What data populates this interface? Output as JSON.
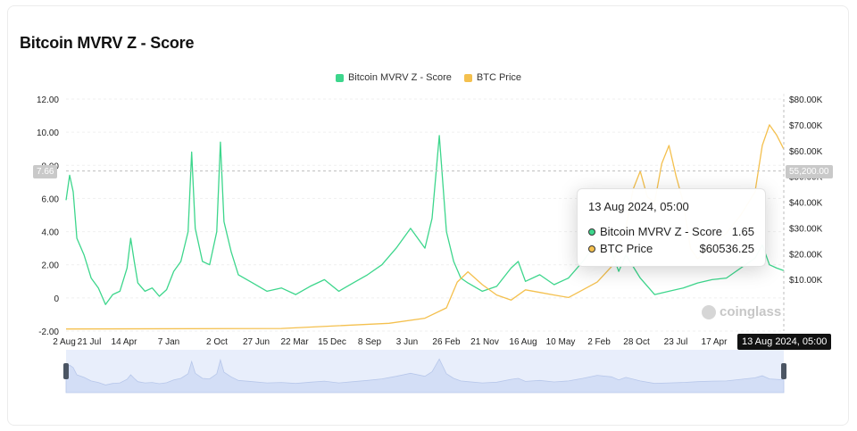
{
  "title": "Bitcoin MVRV Z - Score",
  "legend": [
    {
      "label": "Bitcoin MVRV Z - Score",
      "color": "#3dd68c"
    },
    {
      "label": "BTC Price",
      "color": "#f4c04e"
    }
  ],
  "crosshair": {
    "left_value": "7.66",
    "right_value": "55,200.00",
    "time_label": "13 Aug 2024, 05:00"
  },
  "tooltip": {
    "time": "13 Aug 2024, 05:00",
    "rows": [
      {
        "label": "Bitcoin MVRV Z - Score",
        "value": "1.65",
        "color": "#3dd68c"
      },
      {
        "label": "BTC Price",
        "value": "$60536.25",
        "color": "#f4c04e"
      }
    ]
  },
  "watermark": "coinglass",
  "chart_data": {
    "type": "line",
    "title": "Bitcoin MVRV Z - Score",
    "x_ticks": [
      "2 Aug",
      "21 Jul",
      "14 Apr",
      "7 Jan",
      "2 Oct",
      "27 Jun",
      "22 Mar",
      "15 Dec",
      "8 Sep",
      "3 Jun",
      "26 Feb",
      "21 Nov",
      "16 Aug",
      "10 May",
      "2 Feb",
      "28 Oct",
      "23 Jul",
      "17 Apr",
      "13 Aug 2024, 05:00"
    ],
    "y_left": {
      "ticks": [
        "12.00",
        "10.00",
        "8.00",
        "6.00",
        "4.00",
        "2.00",
        "0",
        "-2.00"
      ],
      "range": [
        -2,
        12
      ]
    },
    "y_right": {
      "ticks": [
        "$80.00K",
        "$70.00K",
        "$60.00K",
        "$50.00K",
        "$40.00K",
        "$30.00K",
        "$20.00K",
        "$10.00K"
      ],
      "range": [
        -10000,
        80000
      ]
    },
    "series": [
      {
        "name": "Bitcoin MVRV Z - Score",
        "color": "#3dd68c",
        "axis": "left",
        "points": [
          [
            0,
            5.9
          ],
          [
            0.005,
            7.4
          ],
          [
            0.01,
            6.4
          ],
          [
            0.015,
            3.6
          ],
          [
            0.025,
            2.6
          ],
          [
            0.035,
            1.2
          ],
          [
            0.045,
            0.6
          ],
          [
            0.055,
            -0.4
          ],
          [
            0.065,
            0.2
          ],
          [
            0.075,
            0.4
          ],
          [
            0.085,
            1.8
          ],
          [
            0.09,
            3.6
          ],
          [
            0.095,
            2.2
          ],
          [
            0.1,
            0.9
          ],
          [
            0.11,
            0.4
          ],
          [
            0.12,
            0.6
          ],
          [
            0.13,
            0.1
          ],
          [
            0.14,
            0.5
          ],
          [
            0.15,
            1.6
          ],
          [
            0.16,
            2.2
          ],
          [
            0.17,
            4.0
          ],
          [
            0.175,
            8.8
          ],
          [
            0.18,
            4.2
          ],
          [
            0.19,
            2.2
          ],
          [
            0.2,
            2.0
          ],
          [
            0.21,
            4.0
          ],
          [
            0.215,
            9.4
          ],
          [
            0.22,
            4.6
          ],
          [
            0.23,
            2.8
          ],
          [
            0.24,
            1.4
          ],
          [
            0.26,
            0.9
          ],
          [
            0.28,
            0.4
          ],
          [
            0.3,
            0.6
          ],
          [
            0.32,
            0.2
          ],
          [
            0.34,
            0.7
          ],
          [
            0.36,
            1.1
          ],
          [
            0.38,
            0.4
          ],
          [
            0.4,
            0.9
          ],
          [
            0.42,
            1.4
          ],
          [
            0.44,
            2.0
          ],
          [
            0.46,
            3.0
          ],
          [
            0.48,
            4.2
          ],
          [
            0.5,
            3.0
          ],
          [
            0.51,
            4.8
          ],
          [
            0.52,
            9.8
          ],
          [
            0.53,
            4.0
          ],
          [
            0.54,
            2.2
          ],
          [
            0.55,
            1.2
          ],
          [
            0.56,
            0.9
          ],
          [
            0.58,
            0.4
          ],
          [
            0.6,
            0.7
          ],
          [
            0.62,
            1.8
          ],
          [
            0.63,
            2.2
          ],
          [
            0.64,
            1.0
          ],
          [
            0.66,
            1.4
          ],
          [
            0.68,
            0.8
          ],
          [
            0.7,
            1.2
          ],
          [
            0.72,
            2.2
          ],
          [
            0.74,
            3.4
          ],
          [
            0.76,
            2.8
          ],
          [
            0.77,
            1.6
          ],
          [
            0.78,
            2.6
          ],
          [
            0.8,
            1.2
          ],
          [
            0.82,
            0.2
          ],
          [
            0.84,
            0.4
          ],
          [
            0.86,
            0.6
          ],
          [
            0.88,
            0.9
          ],
          [
            0.9,
            1.1
          ],
          [
            0.92,
            1.2
          ],
          [
            0.94,
            1.8
          ],
          [
            0.96,
            2.4
          ],
          [
            0.97,
            3.2
          ],
          [
            0.98,
            2.0
          ],
          [
            0.99,
            1.8
          ],
          [
            1.0,
            1.65
          ]
        ]
      },
      {
        "name": "BTC Price",
        "color": "#f4c04e",
        "axis": "right",
        "points": [
          [
            0,
            -9200
          ],
          [
            0.3,
            -9000
          ],
          [
            0.45,
            -7000
          ],
          [
            0.5,
            -5000
          ],
          [
            0.53,
            -1000
          ],
          [
            0.545,
            9000
          ],
          [
            0.56,
            13000
          ],
          [
            0.58,
            8000
          ],
          [
            0.6,
            4000
          ],
          [
            0.62,
            2000
          ],
          [
            0.64,
            6000
          ],
          [
            0.66,
            5000
          ],
          [
            0.68,
            4000
          ],
          [
            0.7,
            3000
          ],
          [
            0.72,
            6000
          ],
          [
            0.74,
            9000
          ],
          [
            0.76,
            15000
          ],
          [
            0.78,
            30000
          ],
          [
            0.79,
            45000
          ],
          [
            0.8,
            52000
          ],
          [
            0.81,
            42000
          ],
          [
            0.82,
            40000
          ],
          [
            0.83,
            55000
          ],
          [
            0.84,
            62000
          ],
          [
            0.85,
            50000
          ],
          [
            0.86,
            40000
          ],
          [
            0.87,
            22000
          ],
          [
            0.88,
            18000
          ],
          [
            0.9,
            23000
          ],
          [
            0.92,
            28000
          ],
          [
            0.94,
            35000
          ],
          [
            0.96,
            44000
          ],
          [
            0.97,
            62000
          ],
          [
            0.98,
            70000
          ],
          [
            0.99,
            66000
          ],
          [
            1.0,
            60536
          ]
        ]
      }
    ]
  }
}
